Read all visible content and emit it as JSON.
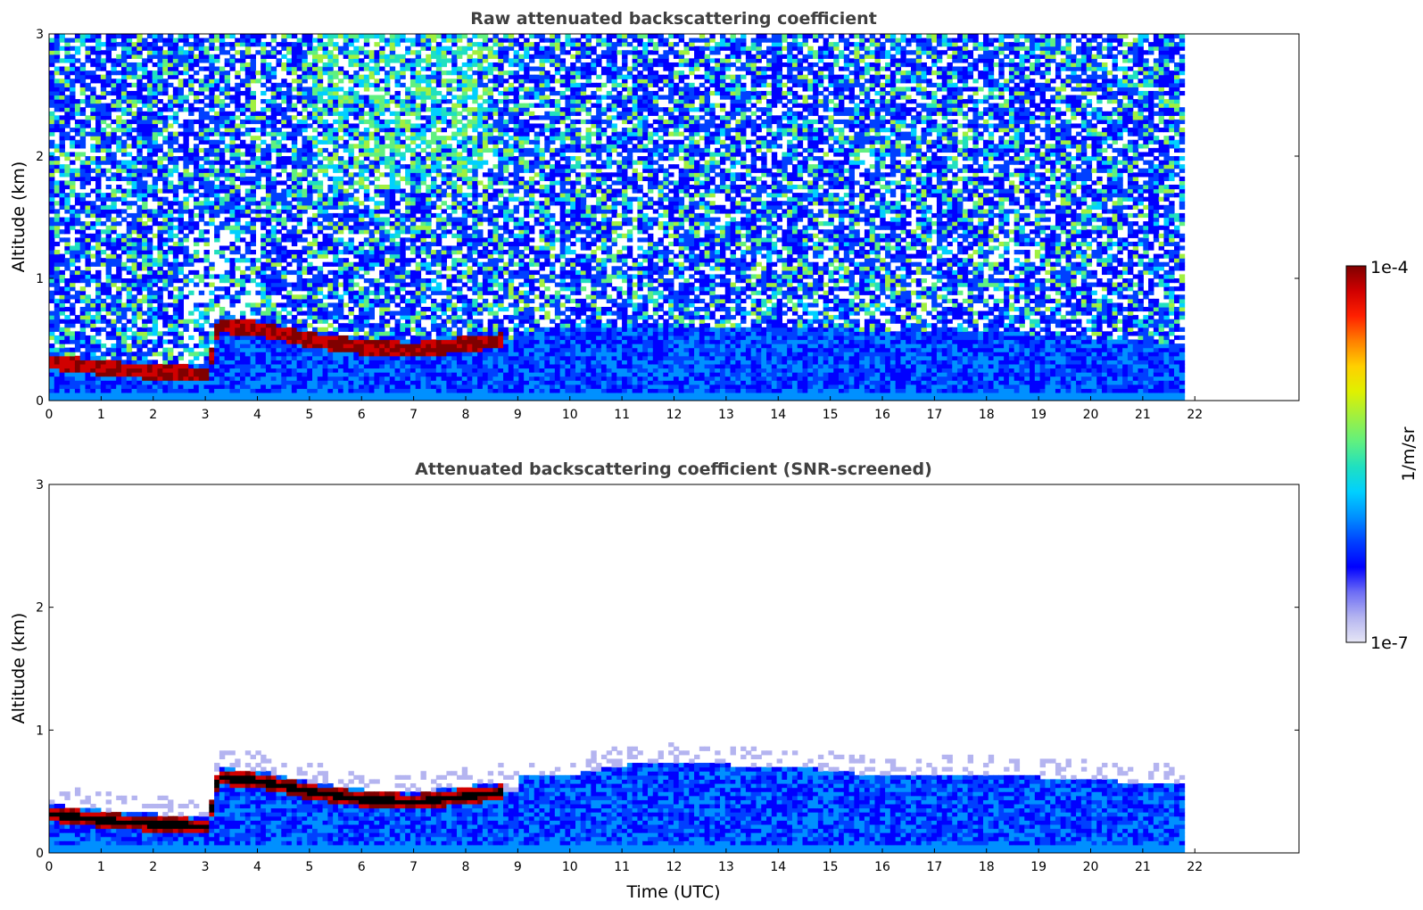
{
  "chart_data": [
    {
      "type": "heatmap",
      "title": "Raw attenuated backscattering coefficient",
      "xlabel": "",
      "ylabel": "Altitude (km)",
      "xlim": [
        0,
        24
      ],
      "ylim": [
        0,
        3
      ],
      "data_end_x": 21.8,
      "x_ticks": [
        "0",
        "1",
        "2",
        "3",
        "4",
        "5",
        "6",
        "7",
        "8",
        "9",
        "10",
        "11",
        "12",
        "13",
        "14",
        "15",
        "16",
        "17",
        "18",
        "19",
        "20",
        "21",
        "22"
      ],
      "y_ticks": [
        "0",
        "1",
        "2",
        "3"
      ],
      "cloud_layer": {
        "x": [
          0,
          1,
          2,
          3,
          3.2,
          4,
          5,
          6,
          7,
          8,
          8.7
        ],
        "y": [
          0.3,
          0.25,
          0.22,
          0.2,
          0.6,
          0.57,
          0.48,
          0.42,
          0.4,
          0.45,
          0.48
        ]
      },
      "boundary_layer_top": {
        "x": [
          9,
          10,
          12,
          14,
          16,
          18,
          20,
          21.8
        ],
        "y": [
          0.55,
          0.6,
          0.6,
          0.6,
          0.55,
          0.55,
          0.5,
          0.45
        ]
      },
      "noisy": true
    },
    {
      "type": "heatmap",
      "title": "Attenuated backscattering coefficient (SNR-screened)",
      "xlabel": "Time (UTC)",
      "ylabel": "Altitude (km)",
      "xlim": [
        0,
        24
      ],
      "ylim": [
        0,
        3
      ],
      "data_end_x": 21.8,
      "x_ticks": [
        "0",
        "1",
        "2",
        "3",
        "4",
        "5",
        "6",
        "7",
        "8",
        "9",
        "10",
        "11",
        "12",
        "13",
        "14",
        "15",
        "16",
        "17",
        "18",
        "19",
        "20",
        "21",
        "22"
      ],
      "y_ticks": [
        "0",
        "1",
        "2",
        "3"
      ],
      "cloud_layer": {
        "x": [
          0,
          1,
          2,
          3,
          3.2,
          4,
          5,
          6,
          7,
          8,
          8.7
        ],
        "y": [
          0.3,
          0.25,
          0.22,
          0.2,
          0.6,
          0.57,
          0.48,
          0.42,
          0.4,
          0.45,
          0.48
        ]
      },
      "boundary_layer_top": {
        "x": [
          9,
          10,
          11,
          12,
          13,
          14,
          15,
          16,
          17,
          18,
          19,
          20,
          21,
          21.8
        ],
        "y": [
          0.6,
          0.62,
          0.7,
          0.72,
          0.7,
          0.68,
          0.66,
          0.6,
          0.62,
          0.62,
          0.6,
          0.58,
          0.55,
          0.55
        ]
      },
      "noisy": false
    }
  ],
  "colorbar": {
    "label": "1/m/sr",
    "max_label": "1e-4",
    "min_label": "1e-7",
    "scale": "log",
    "range": [
      1e-07,
      0.0001
    ],
    "colormap": [
      "#e6e6f5",
      "#b4b4f0",
      "#6e6ef5",
      "#0000ff",
      "#0040ff",
      "#0090ff",
      "#00d0ff",
      "#20e0c0",
      "#60f080",
      "#a0f040",
      "#e0f000",
      "#ffd000",
      "#ff8000",
      "#ff2000",
      "#d00000",
      "#800000"
    ]
  }
}
